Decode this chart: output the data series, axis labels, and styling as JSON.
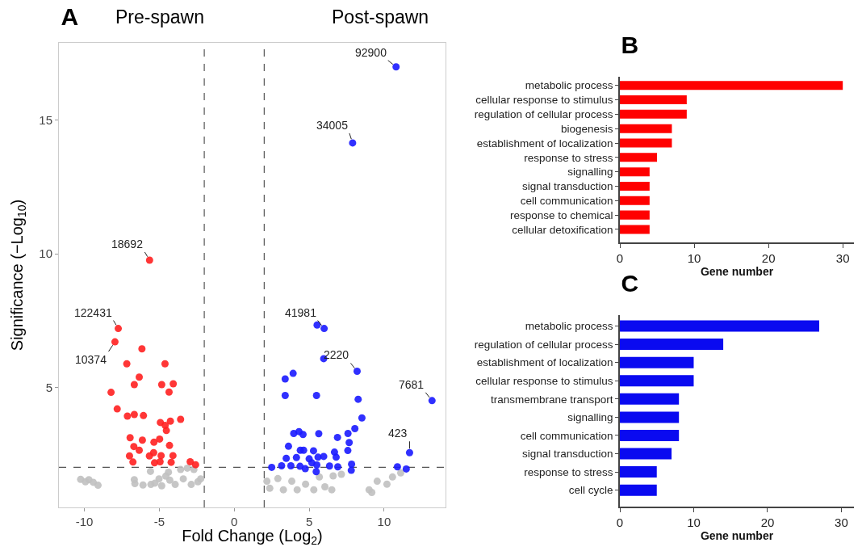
{
  "chart_data": [
    {
      "type": "scatter",
      "title": "A",
      "xlabel": "Fold Change (Log$_{2}$)",
      "ylabel": "Significance (−Log$_{10}$)",
      "marker": "circle",
      "grid": false,
      "xlim": [
        -11.7,
        14.1
      ],
      "xticks": [
        -10,
        -5,
        0,
        5,
        10
      ],
      "ylim": [
        0.5,
        17.9
      ],
      "yticks": [
        5,
        10,
        15
      ],
      "series": [
        {
          "color": "#c0c0c0",
          "x": [
            -10.25,
            -9.7,
            -9.93,
            -9.41,
            -9.09,
            -6.67,
            -6.63,
            -6.09,
            -5.59,
            -5.56,
            -5.02,
            -4.84,
            -4.39,
            -4.3,
            -3.94,
            -3.58,
            -3.4,
            -3.13,
            -2.87,
            -2.69,
            -2.42,
            -2.24,
            -5.29,
            -4.57,
            2.18,
            2.37,
            2.91,
            3.28,
            3.84,
            4.2,
            4.76,
            5.31,
            5.68,
            6.05,
            6.6,
            6.51,
            7.15,
            9.0,
            9.54,
            10.19,
            10.56,
            11.11,
            9.18
          ],
          "values": [
            1.55,
            1.54,
            1.46,
            1.44,
            1.33,
            1.54,
            1.39,
            1.34,
            1.85,
            1.36,
            1.57,
            1.31,
            1.82,
            1.52,
            1.36,
            1.92,
            1.57,
            1.97,
            1.36,
            1.92,
            1.46,
            1.57,
            1.41,
            1.67,
            1.48,
            1.22,
            1.58,
            1.16,
            1.48,
            1.16,
            1.37,
            1.16,
            1.64,
            1.27,
            1.68,
            1.16,
            1.74,
            1.16,
            1.48,
            1.37,
            1.64,
            1.79,
            1.06
          ]
        },
        {
          "color": "#ff2020",
          "x": [
            -5.65,
            -7.74,
            -7.96,
            -6.16,
            -7.17,
            -4.62,
            -6.34,
            -6.67,
            -4.84,
            -4.07,
            -4.35,
            -8.22,
            -7.81,
            -7.13,
            -6.67,
            -6.06,
            -4.93,
            -4.26,
            -3.58,
            -4.61,
            -4.53,
            -6.95,
            -6.13,
            -4.98,
            -6.7,
            -6.34,
            -5.36,
            -4.32,
            -6.99,
            -6.76,
            -5.66,
            -5.38,
            -4.88,
            -4.09,
            -5.32,
            -4.95,
            -4.21,
            -2.94,
            -2.58
          ],
          "values": [
            9.76,
            7.2,
            6.7,
            6.44,
            5.88,
            5.88,
            5.38,
            5.1,
            5.1,
            5.13,
            4.82,
            4.81,
            4.19,
            3.92,
            3.98,
            3.94,
            3.68,
            3.73,
            3.8,
            3.57,
            3.38,
            3.11,
            3.02,
            3.06,
            2.78,
            2.64,
            2.94,
            2.82,
            2.43,
            2.2,
            2.43,
            2.55,
            2.44,
            2.44,
            2.17,
            2.21,
            2.19,
            2.21,
            2.1
          ]
        },
        {
          "color": "#1a1aff",
          "x": [
            10.8,
            7.9,
            6.0,
            8.2,
            13.2,
            11.7,
            5.53,
            5.97,
            3.4,
            3.93,
            3.4,
            5.49,
            8.27,
            8.52,
            8.05,
            7.59,
            6.89,
            5.64,
            3.97,
            4.32,
            4.59,
            7.67,
            3.62,
            4.41,
            4.63,
            5.29,
            6.69,
            7.58,
            3.47,
            4.15,
            5.0,
            5.59,
            5.97,
            6.8,
            5.18,
            3.16,
            3.78,
            4.39,
            5.51,
            6.36,
            6.91,
            7.83,
            2.5,
            4.74,
            5.47,
            7.81,
            10.89,
            11.48
          ],
          "values": [
            17.0,
            14.15,
            7.2,
            5.6,
            4.5,
            2.55,
            7.33,
            6.07,
            5.31,
            5.52,
            4.69,
            4.69,
            4.55,
            3.85,
            3.45,
            3.27,
            3.12,
            3.26,
            3.27,
            3.34,
            3.23,
            2.93,
            2.79,
            2.64,
            2.64,
            2.62,
            2.57,
            2.63,
            2.34,
            2.37,
            2.32,
            2.38,
            2.41,
            2.38,
            2.17,
            2.06,
            2.06,
            2.04,
            2.09,
            2.05,
            2.02,
            2.12,
            2.0,
            1.95,
            1.84,
            1.89,
            2.02,
            1.94
          ]
        }
      ],
      "ref_lines": [
        {
          "axis": "x",
          "value": -2,
          "color": "#555555",
          "line_style": "dashed"
        },
        {
          "axis": "x",
          "value": 2,
          "color": "#555555",
          "line_style": "dashed"
        },
        {
          "axis": "y",
          "value": 2,
          "color": "#555555",
          "line_style": "dashed"
        }
      ],
      "annotations": [
        "Pre-spawn",
        "Post-spawn",
        {
          "text": "92900",
          "x": 10.8,
          "y": 17.0
        },
        {
          "text": "34005",
          "x": 7.9,
          "y": 14.15
        },
        {
          "text": "18692",
          "x": -5.65,
          "y": 9.76
        },
        {
          "text": "122431",
          "x": -7.74,
          "y": 7.2
        },
        {
          "text": "10374",
          "x": -7.96,
          "y": 6.7
        },
        {
          "text": "41981",
          "x": 6.0,
          "y": 7.2
        },
        {
          "text": "2220",
          "x": 8.2,
          "y": 5.6
        },
        {
          "text": "7681",
          "x": 13.2,
          "y": 4.5
        },
        {
          "text": "423",
          "x": 11.7,
          "y": 2.55
        }
      ]
    },
    {
      "type": "bar",
      "title": "B",
      "orientation": "horizontal",
      "xlabel": "Gene number",
      "color": "#ff0000",
      "grid": false,
      "categories": [
        "metabolic process",
        "cellular response to stimulus",
        "regulation of cellular process",
        "biogenesis",
        "establishment of localization",
        "response to stress",
        "signalling",
        "signal transduction",
        "cell communication",
        "response to chemical",
        "cellular detoxification"
      ],
      "values": [
        30,
        9,
        9,
        7,
        7,
        5,
        4,
        4,
        4,
        4,
        4
      ],
      "xlim": [
        0,
        31.5
      ],
      "xticks": [
        0,
        10,
        20,
        30
      ]
    },
    {
      "type": "bar",
      "title": "C",
      "orientation": "horizontal",
      "xlabel": "Gene number",
      "color": "#0a0af0",
      "grid": false,
      "categories": [
        "metabolic process",
        "regulation of cellular process",
        "establishment of localization",
        "cellular response to stimulus",
        "transmembrane transport",
        "signalling",
        "cell communication",
        "signal transduction",
        "response to stress",
        "cell cycle"
      ],
      "values": [
        27,
        14,
        10,
        10,
        8,
        8,
        8,
        7,
        5,
        5
      ],
      "xlim": [
        0,
        31.7
      ],
      "xticks": [
        0,
        10,
        20,
        30
      ]
    }
  ]
}
